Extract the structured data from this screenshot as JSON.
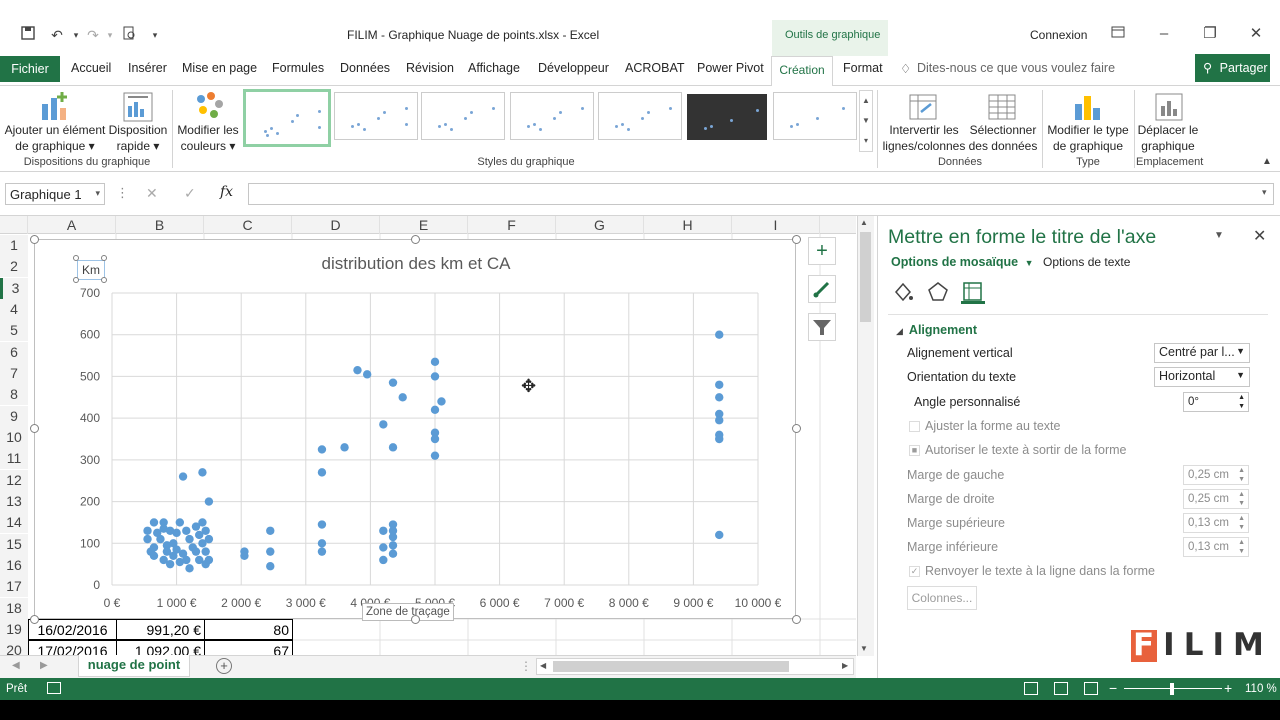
{
  "window": {
    "title": "FILIM - Graphique Nuage de points.xlsx - Excel",
    "context_tab_group": "Outils de graphique",
    "signin": "Connexion"
  },
  "tabs": [
    "Fichier",
    "Accueil",
    "Insérer",
    "Mise en page",
    "Formules",
    "Données",
    "Révision",
    "Affichage",
    "Développeur",
    "ACROBAT",
    "Power Pivot",
    "Création",
    "Format"
  ],
  "tell_me": "Dites-nous ce que vous voulez faire",
  "share": "Partager",
  "ribbon": {
    "add_element": [
      "Ajouter un élément",
      "de graphique ▾"
    ],
    "quick_layout": [
      "Disposition",
      "rapide ▾"
    ],
    "change_colors": [
      "Modifier les",
      "couleurs ▾"
    ],
    "group_layouts": "Dispositions du graphique",
    "group_styles": "Styles du graphique",
    "switch_rowcol": [
      "Intervertir les",
      "lignes/colonnes"
    ],
    "select_data": [
      "Sélectionner",
      "des données"
    ],
    "group_data": "Données",
    "change_type": [
      "Modifier le type",
      "de graphique"
    ],
    "group_type": "Type",
    "move_chart": [
      "Déplacer le",
      "graphique"
    ],
    "group_location": "Emplacement"
  },
  "formula_bar": {
    "name_box": "Graphique 1",
    "fx": "fx",
    "value": ""
  },
  "columns": [
    "A",
    "B",
    "C",
    "D",
    "E",
    "F",
    "G",
    "H",
    "I"
  ],
  "rows": [
    "1",
    "2",
    "3",
    "4",
    "5",
    "6",
    "7",
    "8",
    "9",
    "10",
    "11",
    "12",
    "13",
    "14",
    "15",
    "16",
    "17",
    "18",
    "19",
    "20"
  ],
  "table_rows": [
    {
      "date": "16/02/2016",
      "ca": "991,20 €",
      "km": "80"
    },
    {
      "date": "17/02/2016",
      "ca": "1 092,00 €",
      "km": "67"
    }
  ],
  "chart": {
    "title": "distribution des km et CA",
    "y_axis_title": "Km",
    "tooltip": "Zone de traçage",
    "x_tick_labels": [
      "0 €",
      "1 000 €",
      "2 000 €",
      "3 000 €",
      "4 000 €",
      "5 000 €",
      "6 000 €",
      "7 000 €",
      "8 000 €",
      "9 000 €",
      "10 000 €"
    ],
    "y_tick_labels": [
      "0",
      "100",
      "200",
      "300",
      "400",
      "500",
      "600",
      "700"
    ]
  },
  "chart_data": {
    "type": "scatter",
    "title": "distribution des km et CA",
    "xlabel": "",
    "ylabel": "Km",
    "xlim": [
      0,
      10000
    ],
    "ylim": [
      0,
      700
    ],
    "grid": true,
    "color": "#5b9bd5",
    "points": [
      [
        550,
        130
      ],
      [
        550,
        110
      ],
      [
        600,
        80
      ],
      [
        650,
        150
      ],
      [
        650,
        90
      ],
      [
        650,
        70
      ],
      [
        700,
        125
      ],
      [
        750,
        110
      ],
      [
        800,
        135
      ],
      [
        800,
        150
      ],
      [
        800,
        60
      ],
      [
        850,
        95
      ],
      [
        850,
        80
      ],
      [
        900,
        130
      ],
      [
        900,
        50
      ],
      [
        950,
        100
      ],
      [
        950,
        70
      ],
      [
        1000,
        125
      ],
      [
        1000,
        85
      ],
      [
        1050,
        150
      ],
      [
        1050,
        55
      ],
      [
        1100,
        75
      ],
      [
        1100,
        260
      ],
      [
        1150,
        60
      ],
      [
        1150,
        130
      ],
      [
        1200,
        110
      ],
      [
        1200,
        40
      ],
      [
        1250,
        90
      ],
      [
        1300,
        140
      ],
      [
        1300,
        80
      ],
      [
        1350,
        120
      ],
      [
        1350,
        60
      ],
      [
        1400,
        150
      ],
      [
        1400,
        100
      ],
      [
        1400,
        270
      ],
      [
        1450,
        130
      ],
      [
        1450,
        80
      ],
      [
        1450,
        50
      ],
      [
        1500,
        200
      ],
      [
        1500,
        110
      ],
      [
        1500,
        60
      ],
      [
        2050,
        80
      ],
      [
        2050,
        70
      ],
      [
        2450,
        130
      ],
      [
        2450,
        80
      ],
      [
        2450,
        45
      ],
      [
        3250,
        325
      ],
      [
        3250,
        270
      ],
      [
        3250,
        145
      ],
      [
        3250,
        100
      ],
      [
        3250,
        80
      ],
      [
        3600,
        330
      ],
      [
        3800,
        515
      ],
      [
        3950,
        505
      ],
      [
        4200,
        385
      ],
      [
        4200,
        130
      ],
      [
        4200,
        90
      ],
      [
        4200,
        60
      ],
      [
        4350,
        485
      ],
      [
        4350,
        330
      ],
      [
        4350,
        145
      ],
      [
        4350,
        130
      ],
      [
        4350,
        115
      ],
      [
        4350,
        95
      ],
      [
        4350,
        75
      ],
      [
        4500,
        450
      ],
      [
        5000,
        535
      ],
      [
        5000,
        500
      ],
      [
        5000,
        420
      ],
      [
        5000,
        365
      ],
      [
        5000,
        350
      ],
      [
        5000,
        310
      ],
      [
        5100,
        440
      ],
      [
        9400,
        600
      ],
      [
        9400,
        480
      ],
      [
        9400,
        450
      ],
      [
        9400,
        410
      ],
      [
        9400,
        395
      ],
      [
        9400,
        360
      ],
      [
        9400,
        350
      ],
      [
        9400,
        120
      ]
    ]
  },
  "pane": {
    "title": "Mettre en forme le titre de l'axe",
    "tab_shape": "Options de mosaïque",
    "tab_text": "Options de texte",
    "section": "Alignement",
    "vertical_align_label": "Alignement vertical",
    "vertical_align_value": "Centré par l...",
    "text_orientation_label": "Orientation du texte",
    "text_orientation_value": "Horizontal",
    "custom_angle_label": "Angle personnalisé",
    "custom_angle_value": "0°",
    "resize_shape": "Ajuster la forme au texte",
    "allow_overflow": "Autoriser le texte à sortir de la forme",
    "margin_left_label": "Marge de gauche",
    "margin_left_value": "0,25 cm",
    "margin_right_label": "Marge de droite",
    "margin_right_value": "0,25 cm",
    "margin_top_label": "Marge supérieure",
    "margin_top_value": "0,13 cm",
    "margin_bottom_label": "Marge inférieure",
    "margin_bottom_value": "0,13 cm",
    "wrap_text": "Renvoyer le texte à la ligne dans la forme",
    "columns_button": "Colonnes..."
  },
  "watermark": "FILIM",
  "sheet_tab": "nuage de point",
  "status": {
    "ready": "Prêt",
    "zoom": "110 %"
  }
}
